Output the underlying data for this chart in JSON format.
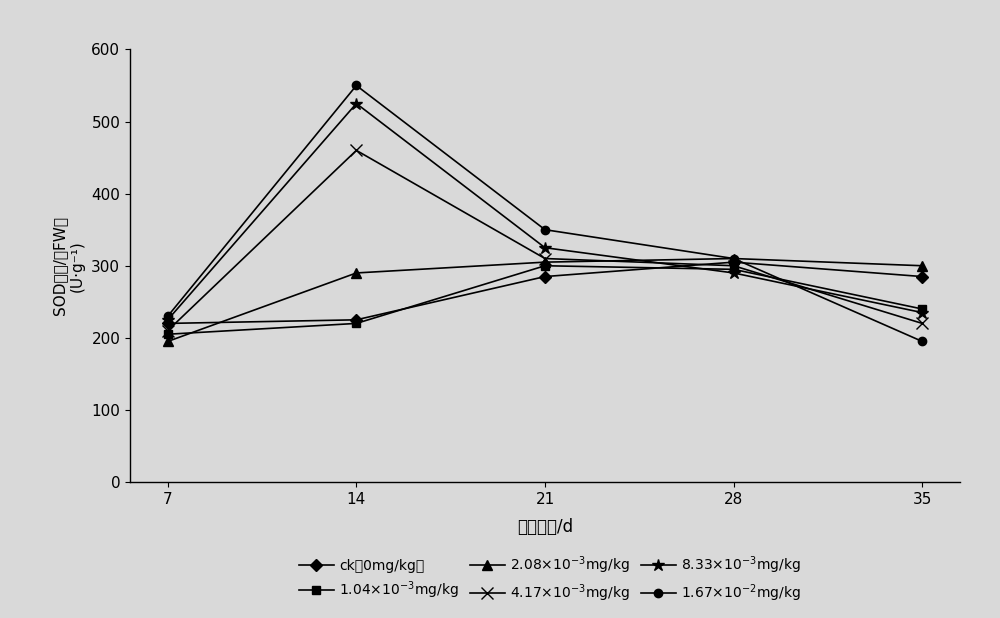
{
  "x": [
    7,
    14,
    21,
    28,
    35
  ],
  "series": [
    {
      "label": "ck（0mg/kg）",
      "values": [
        220,
        225,
        285,
        305,
        285
      ],
      "marker": "D",
      "linestyle": "-",
      "color": "#000000",
      "markersize": 6,
      "markerfacecolor": "black"
    },
    {
      "label": "1.04×10⁻³mg/kg",
      "values": [
        205,
        220,
        300,
        295,
        240
      ],
      "marker": "s",
      "linestyle": "-",
      "color": "#000000",
      "markersize": 6,
      "markerfacecolor": "black"
    },
    {
      "label": "2.08×10⁻³mg/kg",
      "values": [
        195,
        290,
        305,
        310,
        300
      ],
      "marker": "^",
      "linestyle": "-",
      "color": "#000000",
      "markersize": 7,
      "markerfacecolor": "black"
    },
    {
      "label": "4.17×10⁻³mg/kg",
      "values": [
        210,
        460,
        310,
        300,
        220
      ],
      "marker": "x",
      "linestyle": "-",
      "color": "#000000",
      "markersize": 8,
      "markerfacecolor": "black"
    },
    {
      "label": "8.33×10⁻³mg/kg",
      "values": [
        225,
        525,
        325,
        290,
        235
      ],
      "marker": "*",
      "linestyle": "-",
      "color": "#000000",
      "markersize": 9,
      "markerfacecolor": "black"
    },
    {
      "label": "1.67×10⁻²mg/kg",
      "values": [
        230,
        550,
        350,
        310,
        195
      ],
      "marker": "o",
      "linestyle": "-",
      "color": "#000000",
      "markersize": 6,
      "markerfacecolor": "black"
    }
  ],
  "xlabel": "移栽时间/d",
  "ylabel_chinese": "SOD活性/（FW）",
  "ylabel_units": "(U·g⁻¹)",
  "ylim": [
    0,
    600
  ],
  "yticks": [
    0,
    100,
    200,
    300,
    400,
    500,
    600
  ],
  "xticks": [
    7,
    14,
    21,
    28,
    35
  ],
  "background_color": "#d9d9d9",
  "figsize": [
    10,
    6.18
  ],
  "dpi": 100,
  "label_strings": [
    "ck（0mg/kg）",
    "1.04×10⁻³mg/kg",
    "2.08×10⁻³mg/kg",
    "4.17×10⁻³mg/kg",
    "8.33×10⁻³mg/kg",
    "1.67×10⁻²mg/kg"
  ]
}
